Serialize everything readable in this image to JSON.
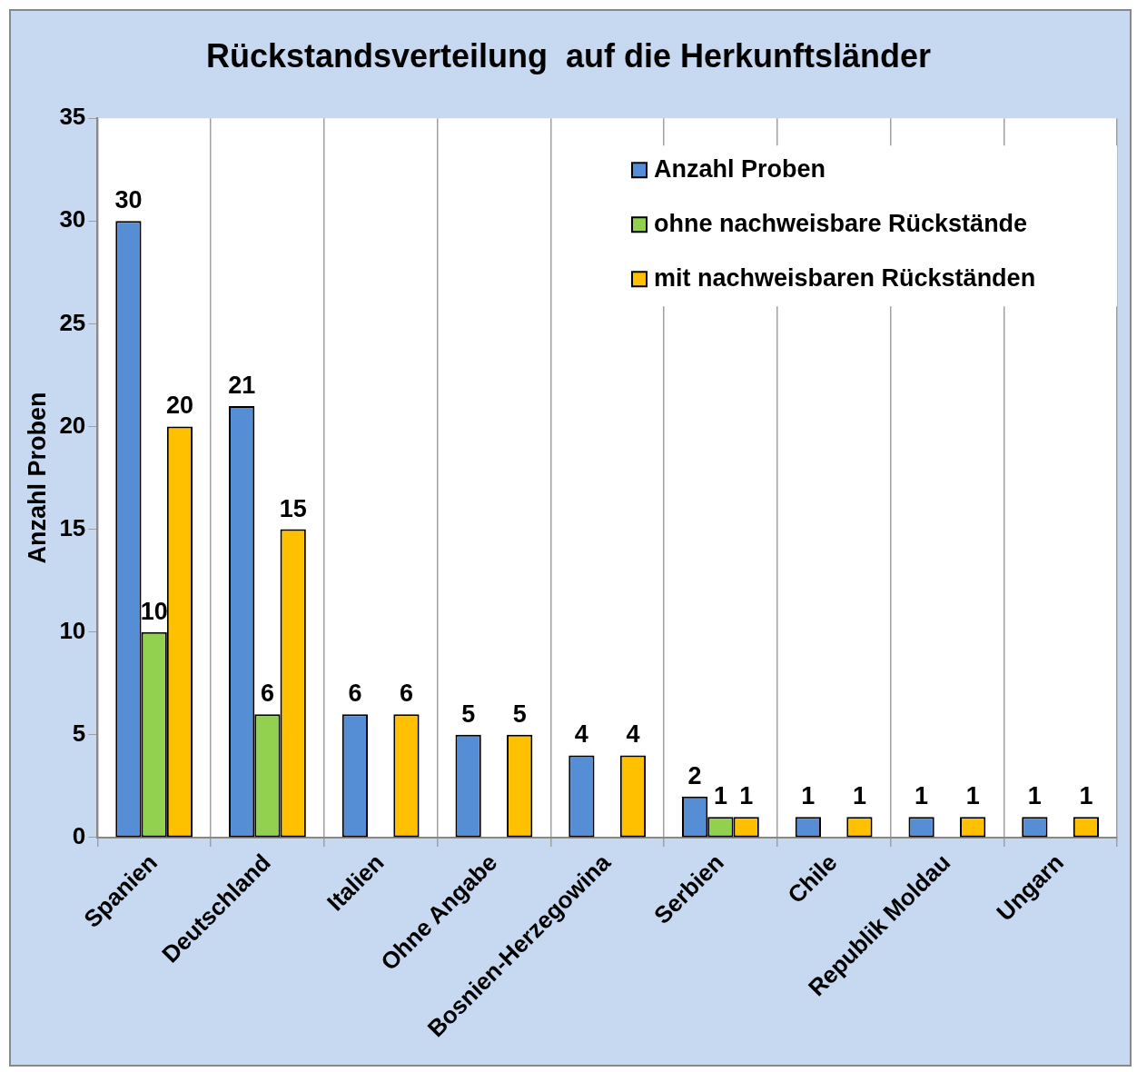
{
  "chart_data": {
    "type": "bar",
    "title": "Rückstandsverteilung  auf die Herkunftsländer",
    "ylabel": "Anzahl Proben",
    "categories": [
      "Spanien",
      "Deutschland",
      "Italien",
      "Ohne Angabe",
      "Bosnien-Herzegowina",
      "Serbien",
      "Chile",
      "Republik Moldau",
      "Ungarn"
    ],
    "series": [
      {
        "name": "Anzahl Proben",
        "color": "#558ed5",
        "values": [
          30,
          21,
          6,
          5,
          4,
          2,
          1,
          1,
          1
        ]
      },
      {
        "name": "ohne nachweisbare Rückstände",
        "color": "#92d050",
        "values": [
          10,
          6,
          null,
          null,
          null,
          1,
          null,
          null,
          null
        ]
      },
      {
        "name": "mit nachweisbaren Rückständen",
        "color": "#ffc000",
        "values": [
          20,
          15,
          6,
          5,
          4,
          1,
          1,
          1,
          1
        ]
      }
    ],
    "ylim": [
      0,
      35
    ],
    "yticks": [
      0,
      5,
      10,
      15,
      20,
      25,
      30,
      35
    ],
    "grid": "x",
    "legend": "top right",
    "data_labels": true
  }
}
